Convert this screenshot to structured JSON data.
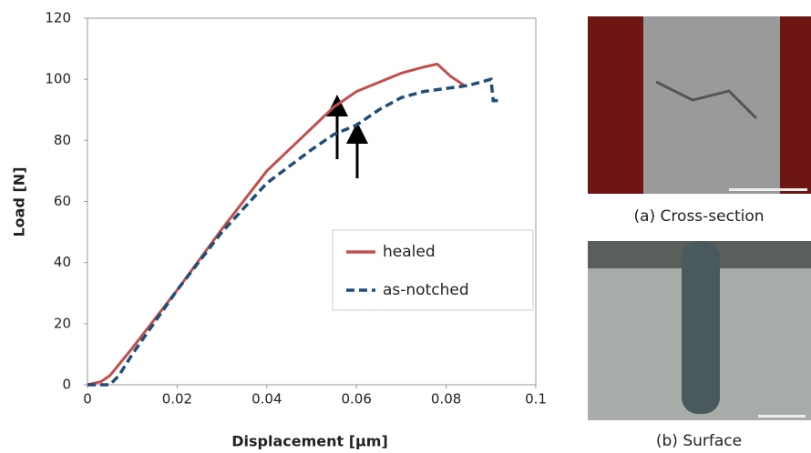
{
  "chart_data": {
    "type": "line",
    "xlabel": "Displacement [μm]",
    "ylabel": "Load [N]",
    "xlim": [
      0,
      0.1
    ],
    "xticks": [
      0,
      0.02,
      0.04,
      0.06,
      0.08,
      0.1
    ],
    "ylim": [
      0,
      120
    ],
    "yticks": [
      0,
      20,
      40,
      60,
      80,
      100,
      120
    ],
    "grid": false,
    "legend": "lower right",
    "series": [
      {
        "name": "healed",
        "color": "#c0504d",
        "dash": false,
        "x": [
          0,
          0.003,
          0.005,
          0.01,
          0.02,
          0.03,
          0.04,
          0.05,
          0.055,
          0.06,
          0.065,
          0.07,
          0.075,
          0.078,
          0.081,
          0.083,
          0.084
        ],
        "values": [
          0,
          1,
          3,
          12,
          31,
          51,
          70,
          84,
          91,
          96,
          99,
          102,
          104,
          105,
          101,
          99,
          98
        ]
      },
      {
        "name": "as-notched",
        "color": "#1f4e79",
        "dash": true,
        "x": [
          0,
          0.005,
          0.007,
          0.01,
          0.02,
          0.03,
          0.04,
          0.05,
          0.055,
          0.06,
          0.065,
          0.07,
          0.075,
          0.08,
          0.085,
          0.09,
          0.0905,
          0.092
        ],
        "values": [
          0,
          0,
          3,
          10,
          31,
          50,
          66,
          77,
          82,
          85,
          90,
          94,
          96,
          97,
          98,
          100,
          93,
          93
        ]
      }
    ]
  },
  "images": [
    {
      "caption": "(a) Cross-section"
    },
    {
      "caption": "(b) Surface"
    }
  ]
}
